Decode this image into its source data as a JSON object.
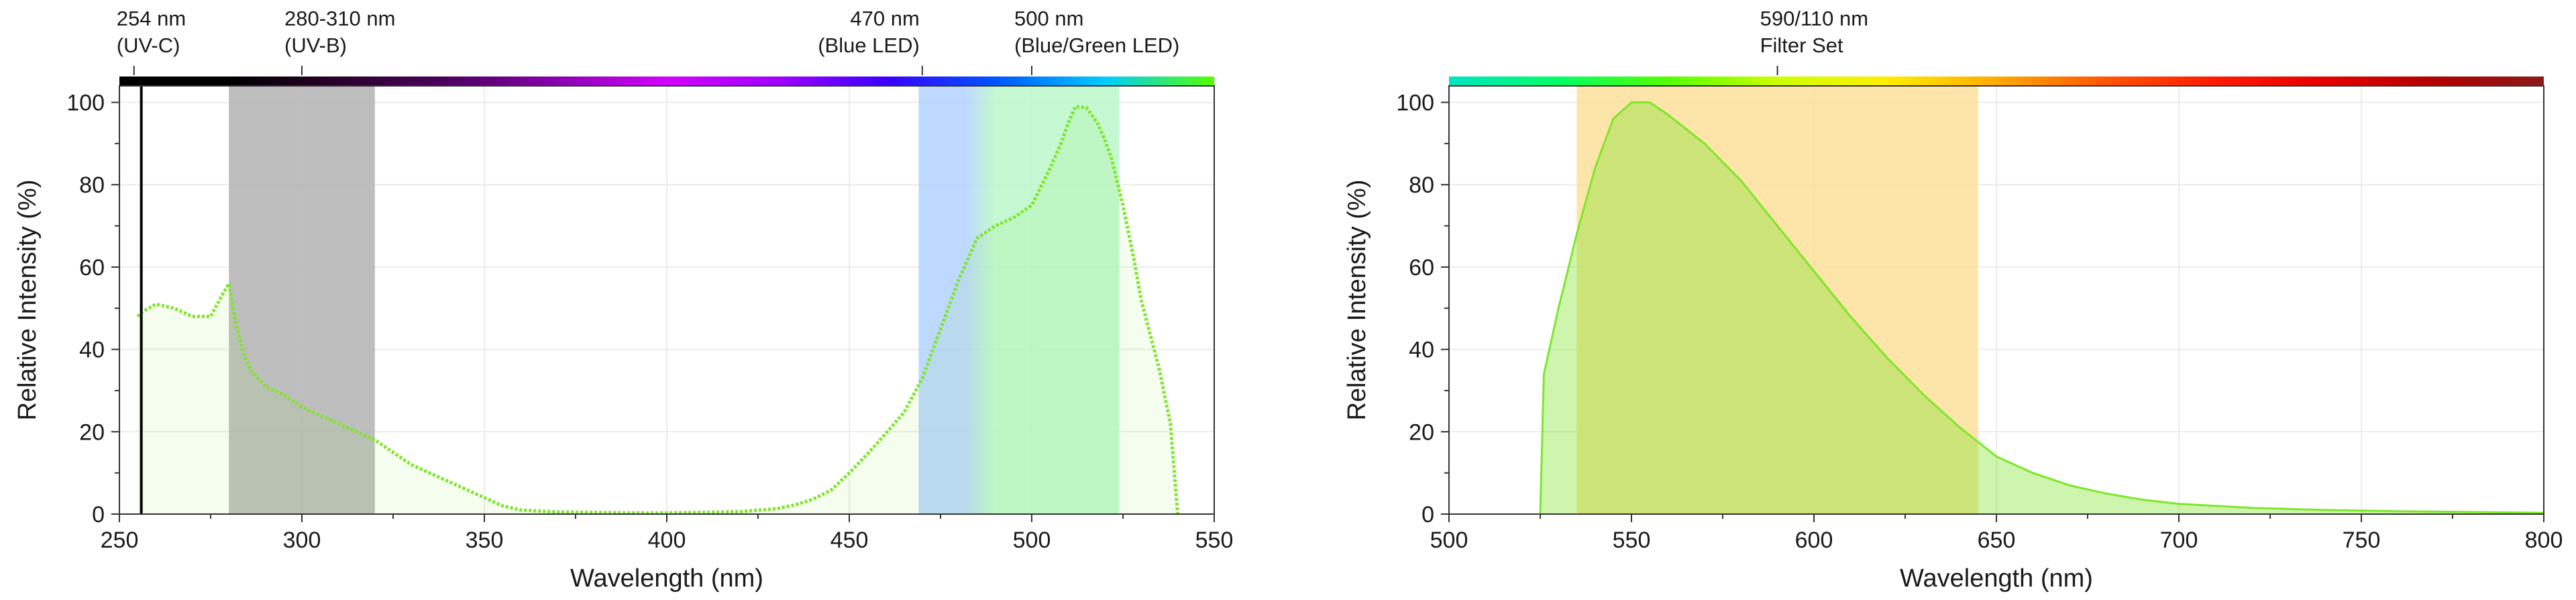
{
  "chart_data": [
    {
      "type": "area",
      "xlabel": "Wavelength (nm)",
      "ylabel": "Relative Intensity (%)",
      "xlim": [
        250,
        550
      ],
      "ylim": [
        0,
        104
      ],
      "xticks": [
        250,
        300,
        350,
        400,
        450,
        500,
        550
      ],
      "yticks": [
        0,
        20,
        40,
        60,
        80,
        100
      ],
      "grid": true,
      "series": [
        {
          "color": "#7ee62a",
          "line_style": "dashed",
          "x": [
            255,
            256,
            258,
            260,
            265,
            270,
            275,
            278,
            280,
            282,
            284,
            286,
            290,
            295,
            300,
            305,
            310,
            315,
            320,
            325,
            330,
            335,
            340,
            345,
            350,
            355,
            360,
            370,
            380,
            390,
            400,
            410,
            420,
            430,
            435,
            440,
            445,
            450,
            455,
            460,
            465,
            470,
            475,
            480,
            485,
            490,
            495,
            500,
            505,
            508,
            510,
            512,
            515,
            518,
            520,
            522,
            525,
            528,
            530,
            535,
            538,
            540
          ],
          "y": [
            48,
            49,
            50,
            51,
            50,
            48,
            48,
            53,
            56,
            46,
            39,
            35,
            31,
            29,
            26,
            24,
            22,
            20,
            18,
            15,
            12,
            10,
            8,
            6,
            4,
            2,
            1,
            0.5,
            0.4,
            0.3,
            0.3,
            0.4,
            0.6,
            1.3,
            2.2,
            3.6,
            5.8,
            10,
            14.6,
            19.6,
            24.7,
            33,
            45,
            57,
            67,
            70,
            72,
            75,
            84,
            90,
            95,
            99,
            98.7,
            95,
            91,
            86,
            75,
            62,
            52,
            35,
            22,
            0
          ]
        }
      ],
      "bands": [
        {
          "from": 280,
          "to": 320,
          "color": "#b3b3b3"
        },
        {
          "from": 469,
          "to": 490,
          "color": "#b3d2ff"
        },
        {
          "from": 490,
          "to": 524,
          "color": "#baf8c9"
        }
      ],
      "lines": [
        {
          "x": 256,
          "color": "#000000"
        }
      ],
      "spectrum_bar": [
        "#000000",
        "#000000",
        "#2b002b",
        "#4d0061",
        "#8a00b0",
        "#d400ff",
        "#a300ff",
        "#3a00ff",
        "#0055ff",
        "#00ccff",
        "#55ff00"
      ],
      "annotations": [
        {
          "x": 254,
          "line1": "254 nm",
          "line2": "(UV-C)",
          "anchor": "start"
        },
        {
          "x": 300,
          "line1": "280-310 nm",
          "line2": "(UV-B)",
          "anchor": "start"
        },
        {
          "x": 470,
          "line1": "470 nm",
          "line2": "(Blue LED)",
          "anchor": "end"
        },
        {
          "x": 500,
          "line1": "500 nm",
          "line2": "(Blue/Green LED)",
          "anchor": "start"
        }
      ]
    },
    {
      "type": "area",
      "xlabel": "Wavelength (nm)",
      "ylabel": "Relative Intensity (%)",
      "xlim": [
        500,
        800
      ],
      "ylim": [
        0,
        104
      ],
      "xticks": [
        500,
        550,
        600,
        650,
        700,
        750,
        800
      ],
      "yticks": [
        0,
        20,
        40,
        60,
        80,
        100
      ],
      "grid": true,
      "series": [
        {
          "color": "#7ee62a",
          "line_style": "solid",
          "x": [
            525,
            526,
            530,
            535,
            540,
            545,
            550,
            555,
            560,
            570,
            580,
            590,
            600,
            610,
            620,
            630,
            640,
            650,
            660,
            670,
            680,
            690,
            700,
            720,
            740,
            760,
            780,
            800
          ],
          "y": [
            0,
            34,
            50,
            68,
            84,
            96,
            100,
            100,
            97,
            90,
            81,
            70,
            59,
            48,
            38,
            29,
            21,
            14,
            10,
            7,
            5,
            3.5,
            2.5,
            1.5,
            1,
            0.7,
            0.5,
            0.3
          ]
        }
      ],
      "bands": [
        {
          "from": 535,
          "to": 645,
          "color": "#fde09a"
        }
      ],
      "spectrum_bar": [
        "#00e5c0",
        "#00ff66",
        "#55ff00",
        "#ccff00",
        "#ffee00",
        "#ffaa00",
        "#ff5500",
        "#ff1a00",
        "#e60000",
        "#b30000",
        "#8a1a1a"
      ],
      "annotations": [
        {
          "x": 590,
          "line1": "590/110 nm",
          "line2": "Filter Set",
          "anchor": "start"
        }
      ]
    }
  ]
}
